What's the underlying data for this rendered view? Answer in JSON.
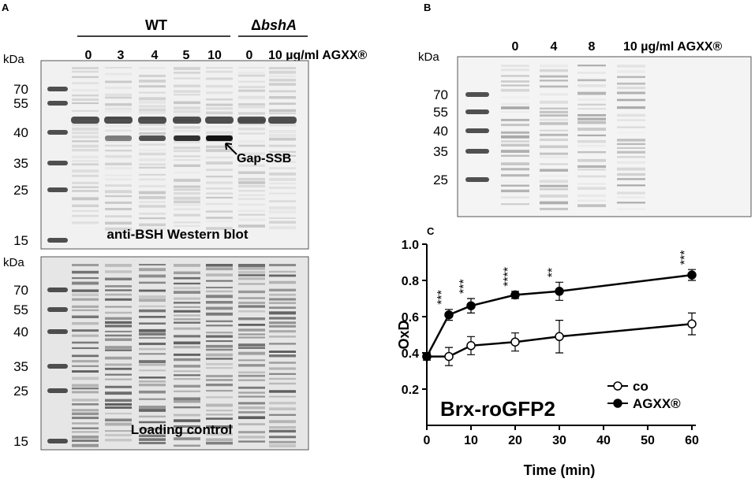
{
  "panel_a": {
    "label": "A",
    "wt": "WT",
    "mutant_delta": "Δ",
    "mutant_gene": "bshA",
    "lanes": [
      "0",
      "3",
      "4",
      "5",
      "10",
      "0",
      "10 µg/ml AGXX®"
    ],
    "western": {
      "kda": "kDa",
      "markers": [
        "70",
        "55",
        "40",
        "35",
        "25",
        "15"
      ],
      "arrow_label": "Gap-SSB",
      "caption": "anti-BSH Western blot"
    },
    "loading": {
      "kda": "kDa",
      "markers": [
        "70",
        "55",
        "40",
        "35",
        "25",
        "15"
      ],
      "caption": "Loading control"
    }
  },
  "panel_b": {
    "label": "B",
    "kda": "kDa",
    "lanes": [
      "0",
      "4",
      "8",
      "10 µg/ml AGXX®"
    ],
    "markers": [
      "70",
      "55",
      "40",
      "35",
      "25"
    ]
  },
  "chart_data": {
    "type": "line",
    "panel_label": "C",
    "xlabel": "Time (min)",
    "ylabel": "OxD",
    "annotation": "Brx-roGFP2",
    "x": [
      0,
      5,
      10,
      20,
      30,
      60
    ],
    "series": [
      {
        "name": "co",
        "color": "#000000",
        "marker_fill": "#ffffff",
        "values": [
          0.38,
          0.38,
          0.44,
          0.46,
          0.49,
          0.56
        ],
        "errors": [
          0.02,
          0.05,
          0.05,
          0.05,
          0.09,
          0.06
        ]
      },
      {
        "name": "AGXX®",
        "color": "#000000",
        "marker_fill": "#000000",
        "values": [
          0.38,
          0.61,
          0.66,
          0.72,
          0.74,
          0.83
        ],
        "errors": [
          0.02,
          0.03,
          0.04,
          0.02,
          0.05,
          0.03
        ],
        "significance": [
          null,
          "***",
          "***",
          "****",
          "**",
          "***"
        ]
      }
    ],
    "xlim": [
      0,
      60
    ],
    "ylim": [
      0,
      1
    ],
    "xticks": [
      0,
      10,
      20,
      30,
      40,
      50,
      60
    ],
    "yticks": [
      0.2,
      0.4,
      0.6,
      0.8,
      {
        "value": 1,
        "label": "1.0"
      }
    ],
    "legend": "lower right"
  }
}
